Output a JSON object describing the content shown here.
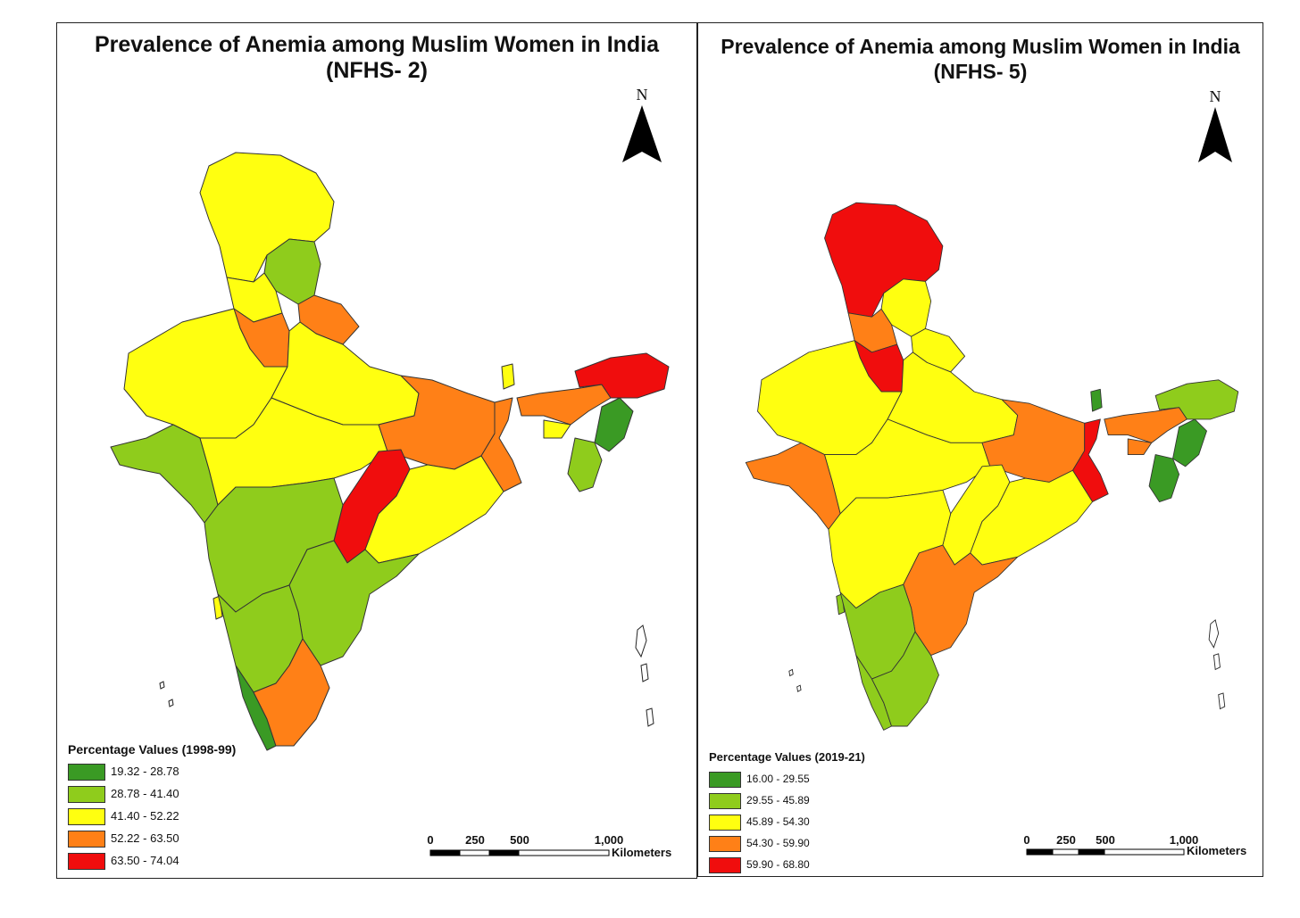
{
  "colors": {
    "dark-green": "#3a9a24",
    "light-green": "#8fcc1c",
    "yellow": "#ffff10",
    "orange": "#ff8017",
    "red": "#f00d0d"
  },
  "maps": [
    {
      "title_line1": "Prevalence of Anemia among Muslim Women in India",
      "title_line2": "(NFHS- 2)",
      "north_label": "N",
      "legend_title": "Percentage Values (1998-99)",
      "legend": [
        {
          "range": "19.32 - 28.78",
          "color": "#3a9a24"
        },
        {
          "range": "28.78 - 41.40",
          "color": "#8fcc1c"
        },
        {
          "range": "41.40 - 52.22",
          "color": "#ffff10"
        },
        {
          "range": "52.22 - 63.50",
          "color": "#ff8017"
        },
        {
          "range": "63.50 - 74.04",
          "color": "#f00d0d"
        }
      ],
      "scale_ticks": [
        "0",
        "250",
        "500",
        "1,000"
      ],
      "scale_unit": "Kilometers",
      "regions": {
        "jammu-kashmir": "#ffff10",
        "himachal": "#8fcc1c",
        "punjab": "#ffff10",
        "haryana": "#ff8017",
        "uttarakhand": "#ff8017",
        "rajasthan": "#ffff10",
        "uttar-pradesh": "#ffff10",
        "gujarat": "#8fcc1c",
        "madhya-pradesh": "#ffff10",
        "bihar-jharkhand": "#ff8017",
        "west-bengal": "#ff8017",
        "chhattisgarh": "#f00d0d",
        "odisha": "#ffff10",
        "maharashtra": "#8fcc1c",
        "telangana-andhra": "#8fcc1c",
        "karnataka": "#8fcc1c",
        "goa": "#ffff10",
        "kerala": "#3a9a24",
        "tamil-nadu": "#ff8017",
        "sikkim": "#ffff10",
        "assam": "#ff8017",
        "arunachal": "#f00d0d",
        "nagaland-manipur": "#3a9a24",
        "mizoram-tripura": "#8fcc1c",
        "meghalaya-strip": "#ffff10"
      }
    },
    {
      "title_line1": "Prevalence of Anemia among Muslim Women in India",
      "title_line2": "(NFHS- 5)",
      "north_label": "N",
      "legend_title": "Percentage Values (2019-21)",
      "legend": [
        {
          "range": "16.00 - 29.55",
          "color": "#3a9a24"
        },
        {
          "range": "29.55 - 45.89",
          "color": "#8fcc1c"
        },
        {
          "range": "45.89 - 54.30",
          "color": "#ffff10"
        },
        {
          "range": "54.30 - 59.90",
          "color": "#ff8017"
        },
        {
          "range": "59.90 - 68.80",
          "color": "#f00d0d"
        }
      ],
      "scale_ticks": [
        "0",
        "250",
        "500",
        "1,000"
      ],
      "scale_unit": "Kilometers",
      "regions": {
        "jammu-kashmir": "#f00d0d",
        "himachal": "#ffff10",
        "punjab": "#ff8017",
        "haryana": "#f00d0d",
        "uttarakhand": "#ffff10",
        "rajasthan": "#ffff10",
        "uttar-pradesh": "#ffff10",
        "gujarat": "#ff8017",
        "madhya-pradesh": "#ffff10",
        "bihar-jharkhand": "#ff8017",
        "west-bengal": "#f00d0d",
        "chhattisgarh": "#ffff10",
        "odisha": "#ffff10",
        "maharashtra": "#ffff10",
        "telangana-andhra": "#ff8017",
        "karnataka": "#8fcc1c",
        "goa": "#8fcc1c",
        "kerala": "#8fcc1c",
        "tamil-nadu": "#8fcc1c",
        "sikkim": "#3a9a24",
        "assam": "#ff8017",
        "arunachal": "#8fcc1c",
        "nagaland-manipur": "#3a9a24",
        "mizoram-tripura": "#3a9a24",
        "meghalaya-strip": "#ff8017"
      }
    }
  ]
}
